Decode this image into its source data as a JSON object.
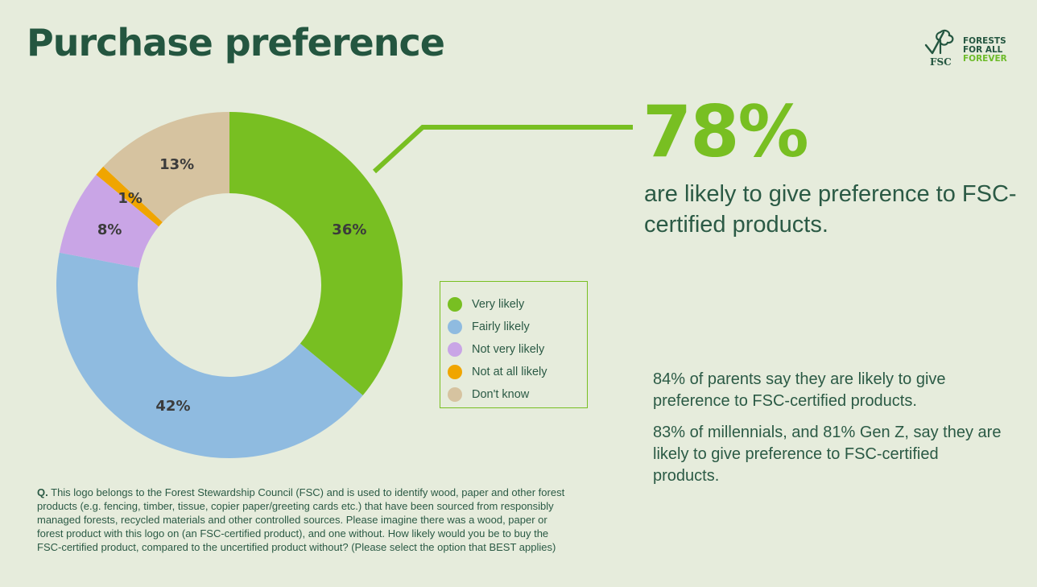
{
  "header": {
    "title": "Purchase preference"
  },
  "logo": {
    "wordmark": "FSC",
    "tagline": [
      "FORESTS",
      "FOR ALL",
      "FOREVER"
    ],
    "registered": "®"
  },
  "chart_data": {
    "type": "pie",
    "variant": "donut",
    "categories": [
      "Very likely",
      "Fairly likely",
      "Not very likely",
      "Not at all likely",
      "Don't know"
    ],
    "values": [
      36,
      42,
      8,
      1,
      13
    ],
    "value_labels": [
      "36%",
      "42%",
      "8%",
      "1%",
      "13%"
    ],
    "colors": [
      "#78bf22",
      "#8fbbe0",
      "#c9a5e6",
      "#f0a500",
      "#d6c3a0"
    ],
    "legend_position": "right"
  },
  "callout": {
    "value": "78%",
    "text": "are likely to give preference to FSC-certified products."
  },
  "stats": [
    "84% of parents say they are likely to give preference to FSC-certified products.",
    "83% of millennials, and 81% Gen Z, say they are likely to give preference to FSC-certified products."
  ],
  "question": {
    "prefix": "Q.",
    "text": "This logo belongs to the Forest Stewardship Council (FSC) and is used to identify wood, paper and other forest products (e.g. fencing, timber, tissue, copier paper/greeting cards etc.) that have been sourced from responsibly managed forests, recycled materials and other controlled sources. Please imagine there was a wood, paper or forest product with this logo on (an FSC-certified product), and one without. How likely would you be to buy the FSC-certified product, compared to the uncertified product without? (Please select the option that BEST applies)"
  }
}
